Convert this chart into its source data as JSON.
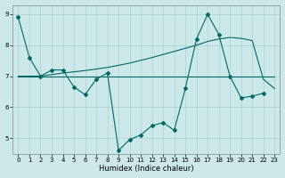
{
  "xlabel": "Humidex (Indice chaleur)",
  "background_color": "#cce8e8",
  "grid_color": "#aad0d0",
  "line_color": "#006868",
  "xlim": [
    -0.5,
    23.5
  ],
  "ylim": [
    4.5,
    9.3
  ],
  "yticks": [
    5,
    6,
    7,
    8,
    9
  ],
  "xticks": [
    0,
    1,
    2,
    3,
    4,
    5,
    6,
    7,
    8,
    9,
    10,
    11,
    12,
    13,
    14,
    15,
    16,
    17,
    18,
    19,
    20,
    21,
    22,
    23
  ],
  "series1_x": [
    0,
    1,
    2,
    3,
    4,
    5,
    6,
    7,
    8,
    9,
    10,
    11,
    12,
    13,
    14,
    15,
    16,
    17,
    18,
    19,
    20,
    21,
    22
  ],
  "series1_y": [
    8.9,
    7.6,
    7.0,
    7.2,
    7.2,
    6.65,
    6.4,
    6.9,
    7.1,
    4.6,
    4.95,
    5.1,
    5.4,
    5.5,
    5.25,
    6.6,
    8.2,
    9.0,
    8.35,
    7.0,
    6.3,
    6.35,
    6.45
  ],
  "series2_x": [
    0,
    23
  ],
  "series2_y": [
    7.0,
    7.0
  ],
  "series3_x": [
    0,
    2,
    3,
    4,
    6,
    8,
    10,
    12,
    14,
    15,
    16,
    17,
    18,
    19,
    20,
    21,
    22,
    23
  ],
  "series3_y": [
    7.0,
    7.0,
    7.05,
    7.1,
    7.18,
    7.28,
    7.42,
    7.6,
    7.8,
    7.9,
    8.0,
    8.12,
    8.2,
    8.25,
    8.22,
    8.15,
    6.9,
    6.6
  ]
}
